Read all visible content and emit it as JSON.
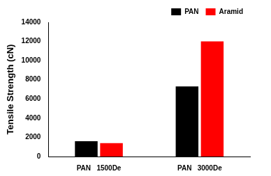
{
  "chart_data": {
    "type": "bar",
    "y_label": "Tensile Strength (cN)",
    "categories": [
      "PAN   1500De",
      "PAN   3000De"
    ],
    "series": [
      {
        "name": "PAN",
        "color": "#000000",
        "values": [
          1600,
          7300
        ]
      },
      {
        "name": "Aramid",
        "color": "#ff0000",
        "values": [
          1400,
          12000
        ]
      }
    ],
    "ylim": [
      0,
      14000
    ],
    "yticks": [
      0,
      2000,
      4000,
      6000,
      8000,
      10000,
      12000,
      14000
    ],
    "grid": false,
    "legend": "upper right"
  }
}
